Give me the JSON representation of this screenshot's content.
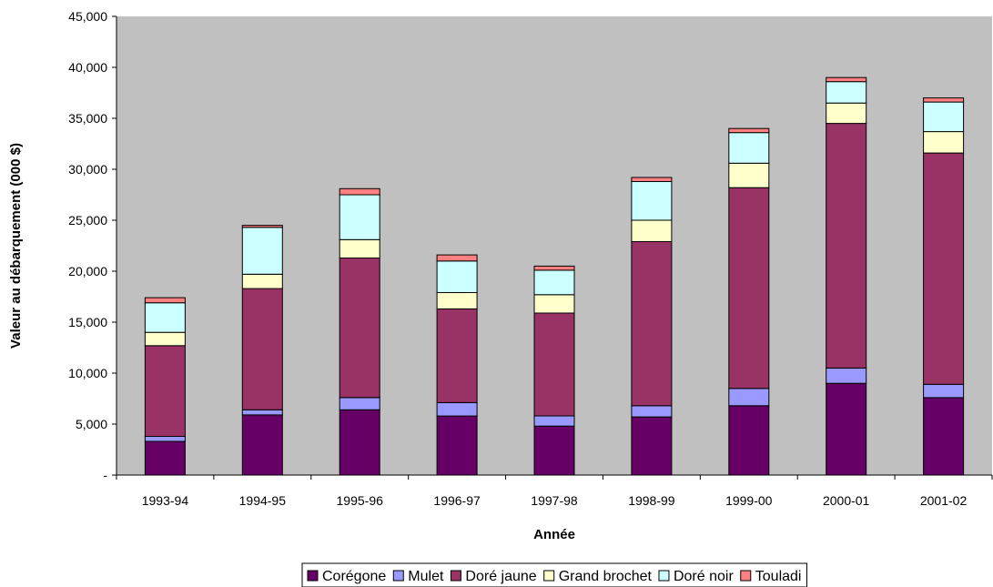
{
  "chart_data": {
    "type": "bar",
    "stacked": true,
    "xlabel": "Année",
    "ylabel": "Valeur au débarquement (000 $)",
    "ylim": [
      0,
      45000
    ],
    "yticks": [
      0,
      5000,
      10000,
      15000,
      20000,
      25000,
      30000,
      35000,
      40000,
      45000
    ],
    "ytick_labels": [
      "-",
      "5,000",
      "10,000",
      "15,000",
      "20,000",
      "25,000",
      "30,000",
      "35,000",
      "40,000",
      "45,000"
    ],
    "grid": false,
    "legend_position": "bottom",
    "plot_background": "#c0c0c0",
    "categories": [
      "1993-94",
      "1994-95",
      "1995-96",
      "1996-97",
      "1997-98",
      "1998-99",
      "1999-00",
      "2000-01",
      "2001-02"
    ],
    "series": [
      {
        "name": "Corégone",
        "color": "#660066",
        "values": [
          3300,
          5900,
          6400,
          5800,
          4800,
          5700,
          6800,
          9000,
          7600
        ]
      },
      {
        "name": "Mulet",
        "color": "#9999ff",
        "values": [
          500,
          500,
          1200,
          1300,
          1000,
          1100,
          1700,
          1500,
          1300
        ]
      },
      {
        "name": "Doré jaune",
        "color": "#993366",
        "values": [
          8900,
          11900,
          13700,
          9200,
          10100,
          16100,
          19700,
          24000,
          22700
        ]
      },
      {
        "name": "Grand brochet",
        "color": "#ffffcc",
        "values": [
          1300,
          1400,
          1800,
          1600,
          1800,
          2100,
          2400,
          2000,
          2100
        ]
      },
      {
        "name": "Doré noir",
        "color": "#ccffff",
        "values": [
          2900,
          4600,
          4400,
          3100,
          2400,
          3800,
          3000,
          2100,
          2900
        ]
      },
      {
        "name": "Touladi",
        "color": "#ff8080",
        "values": [
          500,
          200,
          600,
          600,
          400,
          400,
          400,
          400,
          400
        ]
      }
    ]
  }
}
